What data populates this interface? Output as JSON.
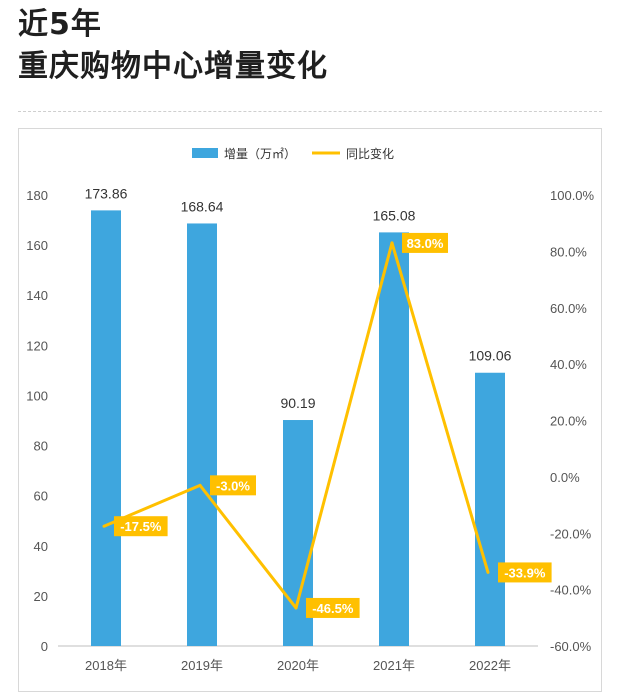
{
  "title": {
    "line1": "近5年",
    "line2": "重庆购物中心增量变化"
  },
  "colors": {
    "bar": "#3ea6de",
    "line": "#ffc000",
    "label_bg": "#ffc000"
  },
  "chart_data": {
    "type": "bar",
    "categories": [
      "2018年",
      "2019年",
      "2020年",
      "2021年",
      "2022年"
    ],
    "series": [
      {
        "name": "增量（万㎡）",
        "type": "bar",
        "axis": "left",
        "values": [
          173.86,
          168.64,
          90.19,
          165.08,
          109.06
        ],
        "value_labels": [
          "173.86",
          "168.64",
          "90.19",
          "165.08",
          "109.06"
        ]
      },
      {
        "name": "同比变化",
        "type": "line",
        "axis": "right",
        "values": [
          -17.5,
          -3.0,
          -46.5,
          83.0,
          -33.9
        ],
        "value_labels": [
          "-17.5%",
          "-3.0%",
          "-46.5%",
          "83.0%",
          "-33.9%"
        ]
      }
    ],
    "ylim": [
      0,
      180
    ],
    "y_ticks": [
      "0",
      "20",
      "40",
      "60",
      "80",
      "100",
      "120",
      "140",
      "160",
      "180"
    ],
    "y2lim": [
      -60,
      100
    ],
    "y2_ticks": [
      "-60.0%",
      "-40.0%",
      "-20.0%",
      "0.0%",
      "20.0%",
      "40.0%",
      "60.0%",
      "80.0%",
      "100.0%"
    ],
    "legend": {
      "position": "top-center",
      "items": [
        "增量（万㎡）",
        "同比变化"
      ]
    },
    "grid": false
  }
}
